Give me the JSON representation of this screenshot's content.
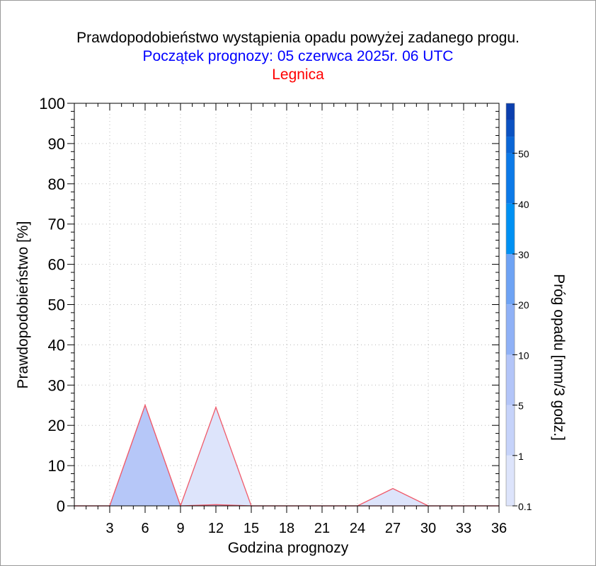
{
  "chart_data": {
    "type": "area",
    "title": "Prawdopodobieństwo wystąpienia opadu powyżej zadanego progu.",
    "subtitle": "Początek prognozy: 05 czerwca 2025r. 06 UTC",
    "location": "Legnica",
    "xlabel": "Godzina prognozy",
    "ylabel": "Prawdopodobieństwo [%]",
    "colorbar_label": "Próg opadu [mm/3 godz.]",
    "xlim": [
      0,
      36
    ],
    "ylim": [
      0,
      100
    ],
    "x_ticks": [
      3,
      6,
      9,
      12,
      15,
      18,
      21,
      24,
      27,
      30,
      33,
      36
    ],
    "y_ticks": [
      0,
      10,
      20,
      30,
      40,
      50,
      60,
      70,
      80,
      90,
      100
    ],
    "grid": true,
    "x": [
      0,
      3,
      6,
      9,
      12,
      15,
      18,
      21,
      24,
      27,
      30,
      33,
      36
    ],
    "series": [
      {
        "name": "0.1",
        "color": "#dde4fb",
        "values": [
          0,
          0,
          25,
          0,
          24.5,
          0,
          0,
          0,
          0,
          4.3,
          0,
          0,
          0
        ]
      },
      {
        "name": "1",
        "color": "#b6c7f8",
        "values": [
          0,
          0,
          25,
          0,
          0.3,
          0,
          0,
          0,
          0,
          0,
          0,
          0,
          0
        ]
      }
    ],
    "colorbar": {
      "tick_labels": [
        "0.1",
        "1",
        "5",
        "10",
        "20",
        "30",
        "40",
        "50"
      ],
      "colors": [
        "#dde4fb",
        "#c6d3fa",
        "#b3c5f8",
        "#8fb1f6",
        "#6ea3f4",
        "#0091f3",
        "#0c7ae8",
        "#0b66d6",
        "#0b52c2",
        "#0b3fae"
      ]
    }
  }
}
